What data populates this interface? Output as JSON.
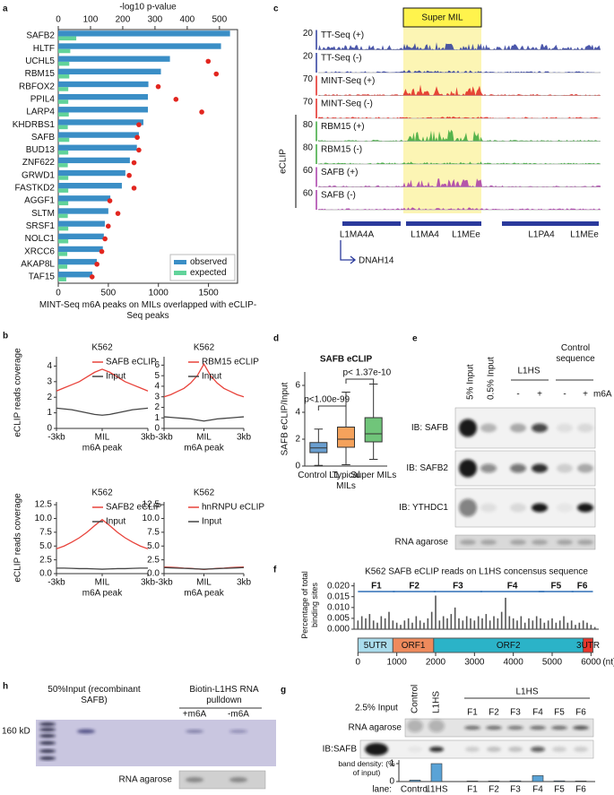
{
  "chart_data": [
    {
      "type": "hbar_dot",
      "panel": "a",
      "categories": [
        "SAFB2",
        "HLTF",
        "UCHL5",
        "RBM15",
        "RBFOX2",
        "PPIL4",
        "LARP4",
        "KHDRBS1",
        "SAFB",
        "BUD13",
        "ZNF622",
        "GRWD1",
        "FASTKD2",
        "AGGF1",
        "SLTM",
        "SRSF1",
        "NOLC1",
        "XRCC6",
        "AKAP8L",
        "TAF15"
      ],
      "label_colors": [
        "#e2261f",
        "#111111",
        "#111111",
        "#e2261f",
        "#111111",
        "#111111",
        "#111111",
        "#111111",
        "#e2261f",
        "#111111",
        "#111111",
        "#111111",
        "#111111",
        "#111111",
        "#111111",
        "#111111",
        "#111111",
        "#111111",
        "#111111",
        "#111111"
      ],
      "series": [
        {
          "name": "observed",
          "color": "#3a8ec6",
          "values": [
            1715,
            1625,
            1115,
            1025,
            900,
            895,
            895,
            850,
            805,
            785,
            715,
            670,
            635,
            520,
            500,
            465,
            455,
            445,
            385,
            340
          ]
        },
        {
          "name": "expected",
          "color": "#61d39a",
          "values": [
            180,
            120,
            110,
            110,
            100,
            100,
            105,
            95,
            110,
            100,
            95,
            100,
            100,
            100,
            95,
            100,
            100,
            90,
            90,
            80
          ]
        }
      ],
      "points": {
        "color": "#e2261f",
        "values": [
          null,
          null,
          465,
          490,
          310,
          365,
          445,
          250,
          245,
          250,
          235,
          220,
          235,
          160,
          185,
          155,
          145,
          135,
          120,
          105
        ]
      },
      "xlim": [
        0,
        1790
      ],
      "xticks": [
        0,
        500,
        1000,
        1500
      ],
      "x2lim": [
        0,
        556
      ],
      "x2ticks": [
        0,
        100,
        200,
        300,
        400,
        500
      ],
      "x2label": "-log10 p-value",
      "xlabel": "MINT-Seq m6A peaks on MILs overlapped with eCLIP-Seq peaks",
      "legend": "lower right"
    },
    {
      "type": "line",
      "panel": "b",
      "title": "K562",
      "ylabel": "eCLIP reads coverage",
      "xlabel": "m6A peak",
      "x": [
        -3000,
        -2500,
        -2000,
        -1500,
        -1000,
        -500,
        0,
        500,
        1000,
        1500,
        2000,
        2500,
        3000
      ],
      "series": [
        {
          "name": "SAFB eCLIP",
          "color": "#e8423a",
          "values": [
            2.4,
            2.6,
            2.8,
            3.0,
            3.3,
            3.6,
            3.8,
            3.6,
            3.3,
            3.0,
            2.8,
            2.6,
            2.4
          ]
        },
        {
          "name": "Input",
          "color": "#444444",
          "values": [
            1.3,
            1.25,
            1.2,
            1.1,
            1.0,
            0.9,
            0.85,
            0.9,
            1.0,
            1.1,
            1.2,
            1.25,
            1.3
          ]
        }
      ],
      "xlim": [
        -3000,
        3000
      ],
      "xticks": [
        {
          "value": -3000,
          "label": "-3kb"
        },
        {
          "value": 0,
          "label": "MIL"
        },
        {
          "value": 3000,
          "label": "3kb"
        }
      ],
      "ylim": [
        0,
        4.6
      ],
      "yticks": [
        0,
        1,
        2,
        3,
        4
      ]
    },
    {
      "type": "line",
      "title": "K562",
      "xlabel": "m6A peak",
      "x": [
        -3000,
        -2500,
        -2000,
        -1500,
        -1000,
        -500,
        0,
        500,
        1000,
        1500,
        2000,
        2500,
        3000
      ],
      "series": [
        {
          "name": "RBM15 eCLIP",
          "color": "#e8423a",
          "values": [
            3.0,
            3.2,
            3.5,
            3.8,
            4.3,
            5.0,
            6.1,
            5.0,
            4.3,
            3.8,
            3.5,
            3.2,
            3.0
          ]
        },
        {
          "name": "Input",
          "color": "#444444",
          "values": [
            1.1,
            1.05,
            1.0,
            0.95,
            0.9,
            0.8,
            0.7,
            0.8,
            0.9,
            0.95,
            1.0,
            1.05,
            1.1
          ]
        }
      ],
      "xlim": [
        -3000,
        3000
      ],
      "xticks": [
        {
          "value": -3000,
          "label": "-3kb"
        },
        {
          "value": 0,
          "label": "MIL"
        },
        {
          "value": 3000,
          "label": "3kb"
        }
      ],
      "ylim": [
        0,
        6.8
      ],
      "yticks": [
        0,
        1,
        2,
        3,
        4,
        5,
        6
      ]
    },
    {
      "type": "line",
      "title": "K562",
      "ylabel": "eCLIP reads coverage",
      "xlabel": "m6A peak",
      "x": [
        -3000,
        -2500,
        -2000,
        -1500,
        -1000,
        -500,
        0,
        500,
        1000,
        1500,
        2000,
        2500,
        3000
      ],
      "series": [
        {
          "name": "SAFB2 eCLIP",
          "color": "#e8423a",
          "values": [
            4.5,
            5.0,
            5.7,
            6.5,
            7.5,
            8.7,
            9.8,
            8.7,
            7.5,
            6.5,
            5.7,
            5.0,
            4.5
          ]
        },
        {
          "name": "Input",
          "color": "#444444",
          "values": [
            1.0,
            1.0,
            0.95,
            0.9,
            0.9,
            0.85,
            0.8,
            0.85,
            0.9,
            0.9,
            0.95,
            1.0,
            1.0
          ]
        }
      ],
      "xlim": [
        -3000,
        3000
      ],
      "xticks": [
        {
          "value": -3000,
          "label": "-3kb"
        },
        {
          "value": 0,
          "label": "MIL"
        },
        {
          "value": 3000,
          "label": "3kb"
        }
      ],
      "ylim": [
        0,
        13
      ],
      "yticks": [
        {
          "value": 0,
          "label": "0.0"
        },
        {
          "value": 2.5,
          "label": "2.5"
        },
        {
          "value": 5,
          "label": "5.0"
        },
        {
          "value": 7.5,
          "label": "7.5"
        },
        {
          "value": 10,
          "label": "10.0"
        },
        {
          "value": 12.5,
          "label": "12.5"
        }
      ]
    },
    {
      "type": "line",
      "title": "K562",
      "xlabel": "m6A peak",
      "x": [
        -3000,
        -2500,
        -2000,
        -1500,
        -1000,
        -500,
        0,
        500,
        1000,
        1500,
        2000,
        2500,
        3000
      ],
      "series": [
        {
          "name": "hnRNPU eCLIP",
          "color": "#e8423a",
          "values": [
            1.2,
            1.15,
            1.1,
            1.0,
            0.95,
            0.85,
            0.75,
            0.85,
            0.95,
            1.0,
            1.1,
            1.15,
            1.2
          ]
        },
        {
          "name": "Input",
          "color": "#444444",
          "values": [
            1.1,
            1.05,
            1.0,
            0.95,
            0.9,
            0.85,
            0.8,
            0.85,
            0.9,
            0.95,
            1.0,
            1.05,
            1.1
          ]
        }
      ],
      "xlim": [
        -3000,
        3000
      ],
      "xticks": [
        {
          "value": -3000,
          "label": "-3kb"
        },
        {
          "value": 0,
          "label": "MIL"
        },
        {
          "value": 3000,
          "label": "3kb"
        }
      ],
      "ylim": [
        0,
        13
      ],
      "yticks": [
        {
          "value": 0,
          "label": "0.0"
        },
        {
          "value": 2.5,
          "label": "2.5"
        },
        {
          "value": 5,
          "label": "5.0"
        },
        {
          "value": 7.5,
          "label": "7.5"
        },
        {
          "value": 10,
          "label": "10.0"
        },
        {
          "value": 12.5,
          "label": "12.5"
        }
      ]
    },
    {
      "type": "box",
      "panel": "d",
      "title": "SAFB eCLIP",
      "ylabel": "SAFB eCLIP/Input",
      "categories": [
        "Control L1",
        "Typical MILs",
        "Super MILs"
      ],
      "boxes": [
        {
          "whislo": 0.05,
          "q1": 1.0,
          "med": 1.35,
          "q3": 1.75,
          "whishi": 2.75,
          "color": "#6a9fd0"
        },
        {
          "whislo": 0.1,
          "q1": 1.4,
          "med": 2.0,
          "q3": 2.9,
          "whishi": 5.5,
          "color": "#f5a25c"
        },
        {
          "whislo": 0.5,
          "q1": 1.8,
          "med": 2.4,
          "q3": 3.6,
          "whishi": 6.1,
          "color": "#70c57a"
        }
      ],
      "annotations": [
        "p<1.00e-99",
        "p< 1.37e-10"
      ],
      "ylim": [
        0,
        7
      ],
      "yticks": [
        0,
        2,
        4,
        6
      ]
    },
    {
      "type": "trace",
      "panel": "f",
      "title": "K562 SAFB eCLIP reads on L1HS concensus sequence",
      "ylabel": "Percentage of total binding sites",
      "color": "#555555",
      "x": [
        0,
        100,
        200,
        300,
        400,
        500,
        600,
        700,
        800,
        900,
        1000,
        1100,
        1200,
        1300,
        1400,
        1500,
        1600,
        1700,
        1800,
        1900,
        2000,
        2100,
        2200,
        2300,
        2400,
        2500,
        2600,
        2700,
        2800,
        2900,
        3000,
        3100,
        3200,
        3300,
        3400,
        3500,
        3600,
        3700,
        3800,
        3900,
        4000,
        4100,
        4200,
        4300,
        4400,
        4500,
        4600,
        4700,
        4800,
        4900,
        5000,
        5100,
        5200,
        5300,
        5400,
        5500,
        5600,
        5700,
        5800,
        5900,
        6000,
        6100
      ],
      "values": [
        0.004,
        0.006,
        0.005,
        0.007,
        0.004,
        0.003,
        0.006,
        0.005,
        0.008,
        0.004,
        0.003,
        0.002,
        0.004,
        0.005,
        0.003,
        0.006,
        0.004,
        0.003,
        0.005,
        0.008,
        0.0155,
        0.004,
        0.006,
        0.005,
        0.007,
        0.01,
        0.005,
        0.004,
        0.006,
        0.005,
        0.004,
        0.006,
        0.005,
        0.007,
        0.004,
        0.006,
        0.005,
        0.008,
        0.0145,
        0.006,
        0.005,
        0.004,
        0.006,
        0.003,
        0.005,
        0.004,
        0.006,
        0.005,
        0.003,
        0.004,
        0.005,
        0.003,
        0.004,
        0.006,
        0.003,
        0.004,
        0.002,
        0.003,
        0.004,
        0.003,
        0.002,
        0.001
      ],
      "fragments": [
        {
          "name": "F1",
          "start": 0,
          "end": 950
        },
        {
          "name": "F2",
          "start": 900,
          "end": 2000
        },
        {
          "name": "F3",
          "start": 1950,
          "end": 3200
        },
        {
          "name": "F4",
          "start": 3150,
          "end": 4800
        },
        {
          "name": "F5",
          "start": 4650,
          "end": 5550
        },
        {
          "name": "F6",
          "start": 5500,
          "end": 6050
        }
      ],
      "segments": [
        {
          "name": "5UTR",
          "start": 0,
          "end": 900,
          "color": "#a9dcec"
        },
        {
          "name": "ORF1",
          "start": 900,
          "end": 1950,
          "color": "#ee8a5c"
        },
        {
          "name": "ORF2",
          "start": 1950,
          "end": 5800,
          "color": "#2bb3c8"
        },
        {
          "name": "3UTR",
          "start": 5800,
          "end": 6050,
          "color": "#e8352b"
        }
      ],
      "xlim": [
        -100,
        6200
      ],
      "xticks": [
        0,
        1000,
        2000,
        3000,
        4000,
        5000,
        6000
      ],
      "xunit": "(nt)",
      "ylim": [
        0,
        0.0215
      ],
      "yticks": [
        {
          "value": 0,
          "label": "0.000"
        },
        {
          "value": 0.005,
          "label": "0.005"
        },
        {
          "value": 0.01,
          "label": "0.010"
        },
        {
          "value": 0.015,
          "label": "0.015"
        },
        {
          "value": 0.02,
          "label": "0.020"
        }
      ]
    },
    {
      "type": "bar",
      "panel": "g",
      "ylabel": "band density: (% of input)",
      "xlabel": "lane:",
      "categories": [
        "Control",
        "L1HS",
        "F1",
        "F2",
        "F3",
        "F4",
        "F5",
        "F6"
      ],
      "label_colors": [
        "#111111",
        "#111111",
        "#e2261f",
        "#e2261f",
        "#e2261f",
        "#e2261f",
        "#e2261f",
        "#e2261f"
      ],
      "values": [
        0.08,
        1.0,
        0.03,
        0.03,
        0.04,
        0.33,
        0.04,
        0.03
      ],
      "color": "#5aa3d6",
      "ylim": [
        0,
        1.1
      ],
      "yticks": [
        0,
        1
      ],
      "input_label": "2.5% Input",
      "header": "L1HS",
      "blots": [
        "RNA agarose",
        "IB:SAFB"
      ]
    }
  ],
  "track_panel": {
    "panel": "c",
    "highlight": "Super MIL",
    "group_label": "eCLIP",
    "tracks": [
      {
        "scale": 20,
        "name": "TT-Seq (+)",
        "color": "#2b3a9c"
      },
      {
        "scale": 20,
        "name": "TT-Seq (-)",
        "color": "#2b3a9c"
      },
      {
        "scale": 70,
        "name": "MINT-Seq (+)",
        "color": "#e2261f"
      },
      {
        "scale": 70,
        "name": "MINT-Seq (-)",
        "color": "#e2261f"
      },
      {
        "scale": 80,
        "name": "RBM15 (+)",
        "color": "#3aa73a"
      },
      {
        "scale": 80,
        "name": "RBM15 (-)",
        "color": "#3aa73a"
      },
      {
        "scale": 60,
        "name": "SAFB (+)",
        "color": "#a83aa8"
      },
      {
        "scale": 60,
        "name": "SAFB (-)",
        "color": "#a83aa8"
      }
    ],
    "repeats": [
      "L1MA4A",
      "L1MA4",
      "L1MEe",
      "L1PA4",
      "L1MEe"
    ],
    "gene": "DNAH14"
  },
  "blot_panel_e": {
    "panel": "e",
    "lanes": [
      "5% Input",
      "0.5% Input"
    ],
    "groups": [
      "L1HS",
      "Control sequence"
    ],
    "signs": [
      "-",
      "+",
      "-",
      "+"
    ],
    "modification": "m6A",
    "rows": [
      "IB: SAFB",
      "IB: SAFB2",
      "IB: YTHDC1",
      "RNA agarose"
    ]
  },
  "blot_panel_h": {
    "panel": "h",
    "input_label": "50%Input (recombinant SAFB)",
    "pulldown_label": "Biotin-L1HS RNA pulldown",
    "lanes": [
      "+m6A",
      "-m6A"
    ],
    "marker": "160 kD",
    "blot": "RNA agarose"
  }
}
